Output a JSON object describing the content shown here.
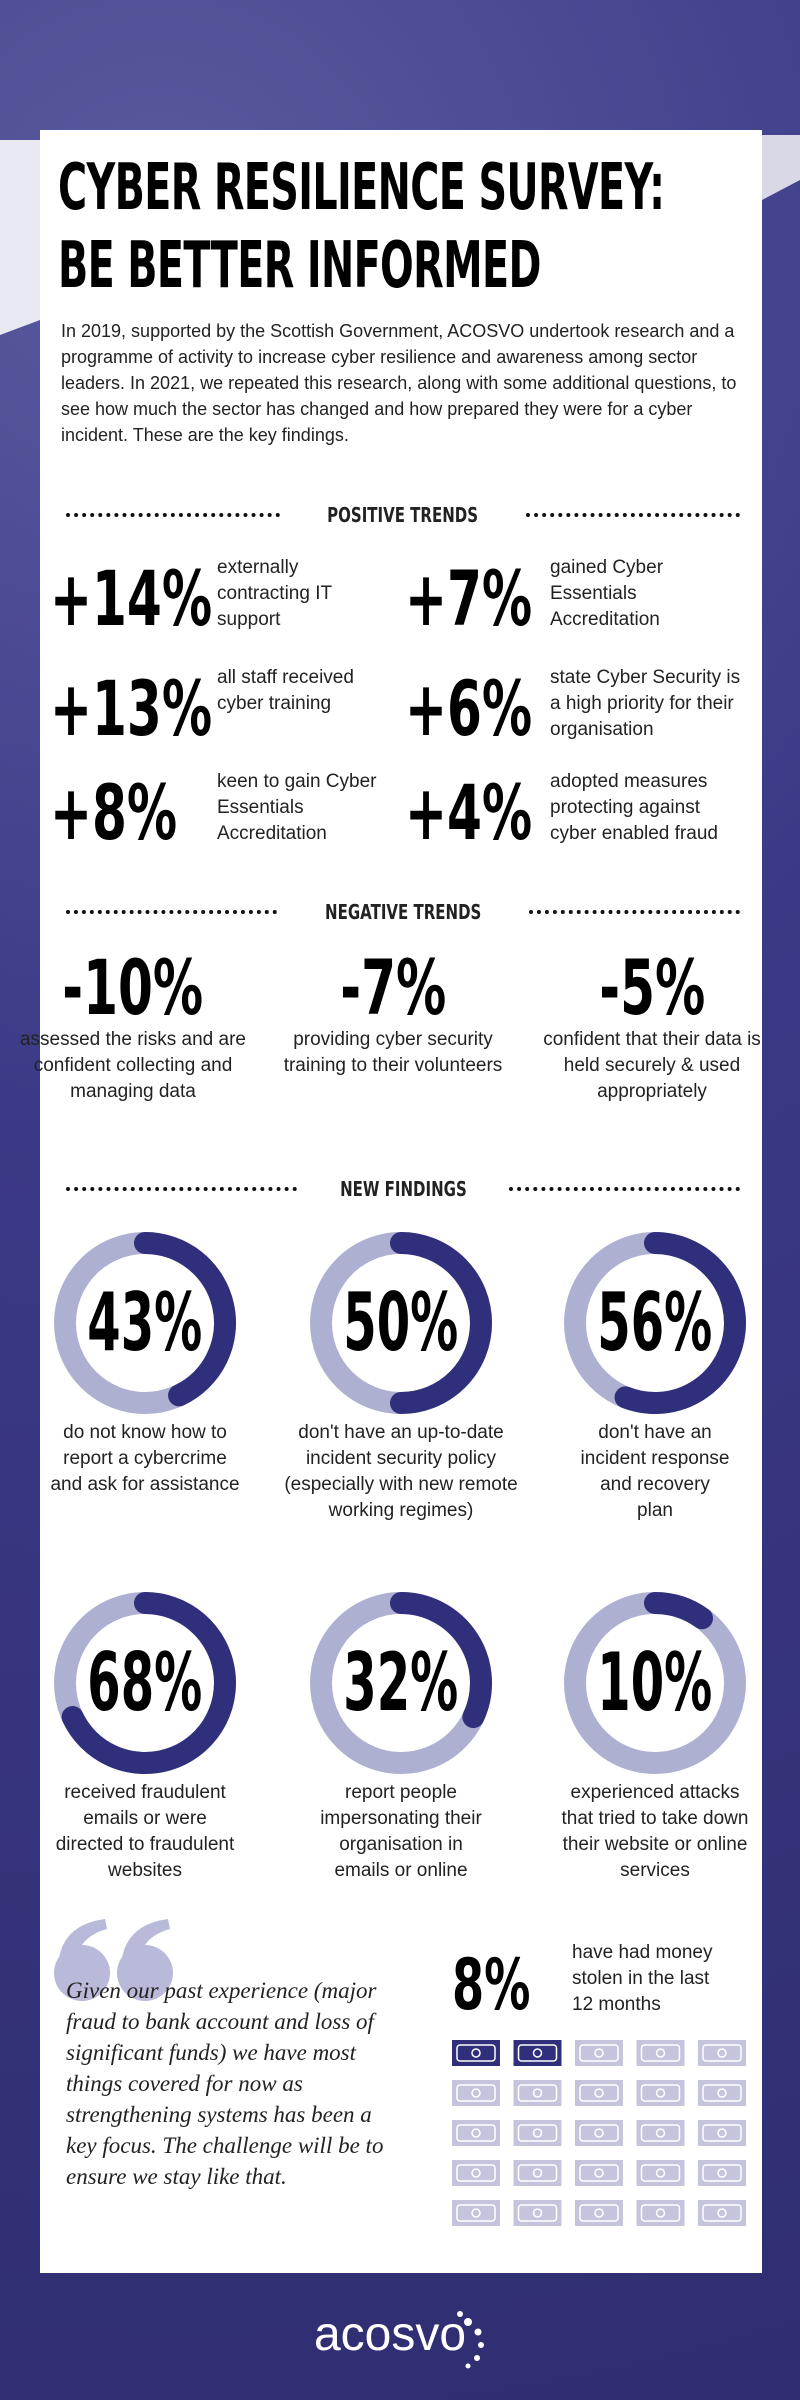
{
  "header": {
    "title_line1": "CYBER RESILIENCE SURVEY:",
    "title_line2": "BE BETTER INFORMED",
    "intro": "In 2019, supported by the Scottish Government, ACOSVO undertook research and a programme of activity to increase cyber resilience and awareness among sector leaders. In 2021, we repeated this research, along with some additional questions, to see how much the sector has changed and how prepared they were for a cyber incident. These are the key findings."
  },
  "positive": {
    "heading": "POSITIVE TRENDS",
    "items": [
      {
        "figure": "+14%",
        "text": "externally contracting IT support"
      },
      {
        "figure": "+7%",
        "text": "gained Cyber Essentials Accreditation"
      },
      {
        "figure": "+13%",
        "text": "all staff received cyber training"
      },
      {
        "figure": "+6%",
        "text": "state Cyber Security is a high priority for their organisation"
      },
      {
        "figure": "+8%",
        "text": "keen to gain Cyber Essentials Accreditation"
      },
      {
        "figure": "+4%",
        "text": "adopted measures protecting against cyber enabled fraud"
      }
    ]
  },
  "negative": {
    "heading": "NEGATIVE TRENDS",
    "items": [
      {
        "figure": "-10%",
        "text": "assessed the risks and are confident collecting and managing data"
      },
      {
        "figure": "-7%",
        "text": "providing cyber security training to their volunteers"
      },
      {
        "figure": "-5%",
        "text": "confident that their data is held securely & used appropriately"
      }
    ]
  },
  "findings": {
    "heading": "NEW FINDINGS",
    "items": [
      {
        "value": 43,
        "label": "43%",
        "text": "do not know how to report a cybercrime and ask for assistance"
      },
      {
        "value": 50,
        "label": "50%",
        "text": "don't have an up-to-date incident security policy (especially with new remote working regimes)"
      },
      {
        "value": 56,
        "label": "56%",
        "text": "don't have an incident response and recovery plan"
      },
      {
        "value": 68,
        "label": "68%",
        "text": "received fraudulent emails or were directed to fraudulent websites"
      },
      {
        "value": 32,
        "label": "32%",
        "text": "report people impersonating their organisation in emails or online"
      },
      {
        "value": 10,
        "label": "10%",
        "text": "experienced attacks that tried to take down their website or online services"
      }
    ]
  },
  "quote": "Given our past experience (major fraud to bank account and loss of significant funds) we have most things covered for now as strengthening systems has been a key focus. The challenge will be to ensure we stay like that.",
  "money": {
    "value": 8,
    "label": "8%",
    "text": "have had money stolen in the last 12 months"
  },
  "footer": {
    "logo": "acosvo"
  }
}
